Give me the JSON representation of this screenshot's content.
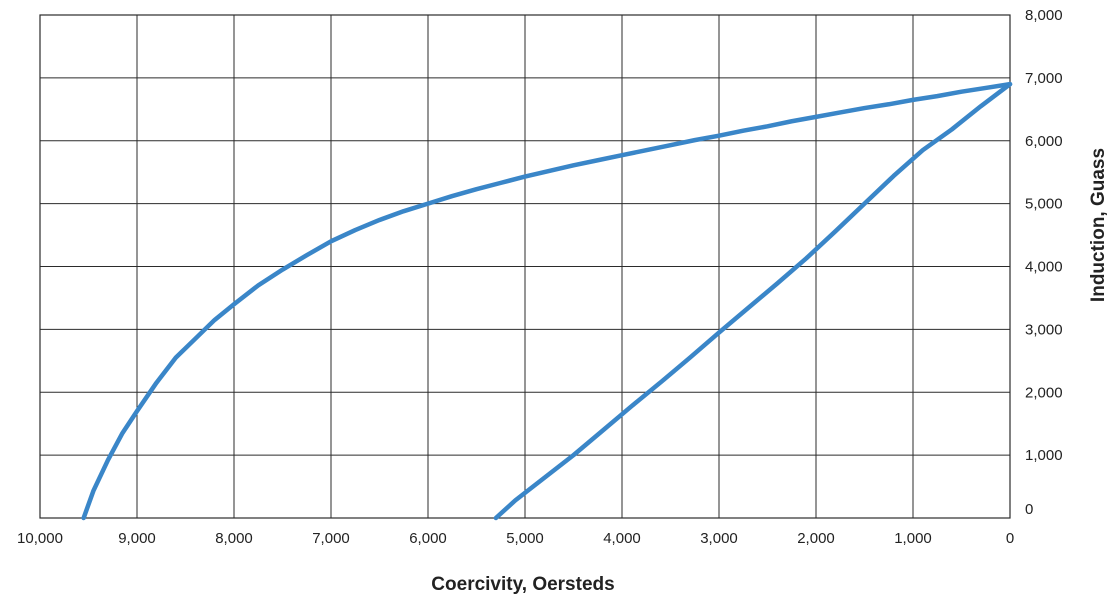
{
  "chart_data": {
    "type": "line",
    "title": "",
    "xlabel": "Coercivity, Oersteds",
    "ylabel": "Induction, Guass",
    "xlim": [
      10000,
      0
    ],
    "ylim": [
      0,
      8000
    ],
    "x_reversed": true,
    "grid": true,
    "y_axis_side": "right",
    "x_ticks": [
      10000,
      9000,
      8000,
      7000,
      6000,
      5000,
      4000,
      3000,
      2000,
      1000,
      0
    ],
    "x_tick_labels": [
      "10,000",
      "9,000",
      "8,000",
      "7,000",
      "6,000",
      "5,000",
      "4,000",
      "3,000",
      "2,000",
      "1,000",
      "0"
    ],
    "y_ticks": [
      0,
      1000,
      2000,
      3000,
      4000,
      5000,
      6000,
      7000,
      8000
    ],
    "y_tick_labels": [
      "0",
      "1,000",
      "2,000",
      "3,000",
      "4,000",
      "5,000",
      "6,000",
      "7,000",
      "8,000"
    ],
    "line_color": "#3a86c8",
    "series": [
      {
        "x": [
          9550,
          9450,
          9300,
          9150,
          9000,
          8800,
          8600,
          8400,
          8200,
          8000,
          7750,
          7500,
          7250,
          7000,
          6750,
          6500,
          6250,
          6000,
          5750,
          5500,
          5250,
          5000,
          4750,
          4500,
          4250,
          4000,
          3750,
          3500,
          3250,
          3000,
          2750,
          2500,
          2250,
          2000,
          1750,
          1500,
          1250,
          1000,
          750,
          500,
          250,
          0
        ],
        "y": [
          0,
          430,
          920,
          1350,
          1700,
          2150,
          2550,
          2850,
          3150,
          3400,
          3700,
          3950,
          4180,
          4400,
          4580,
          4740,
          4880,
          5000,
          5120,
          5230,
          5330,
          5430,
          5520,
          5610,
          5690,
          5770,
          5850,
          5930,
          6010,
          6080,
          6160,
          6230,
          6310,
          6380,
          6450,
          6520,
          6580,
          6650,
          6710,
          6780,
          6840,
          6900
        ]
      },
      {
        "x": [
          5300,
          5100,
          4800,
          4500,
          4200,
          3900,
          3600,
          3300,
          3000,
          2700,
          2400,
          2100,
          1800,
          1500,
          1200,
          900,
          600,
          300,
          0
        ],
        "y": [
          0,
          280,
          640,
          1000,
          1390,
          1780,
          2160,
          2550,
          2950,
          3340,
          3730,
          4130,
          4560,
          5000,
          5440,
          5850,
          6180,
          6550,
          6900
        ]
      }
    ]
  }
}
